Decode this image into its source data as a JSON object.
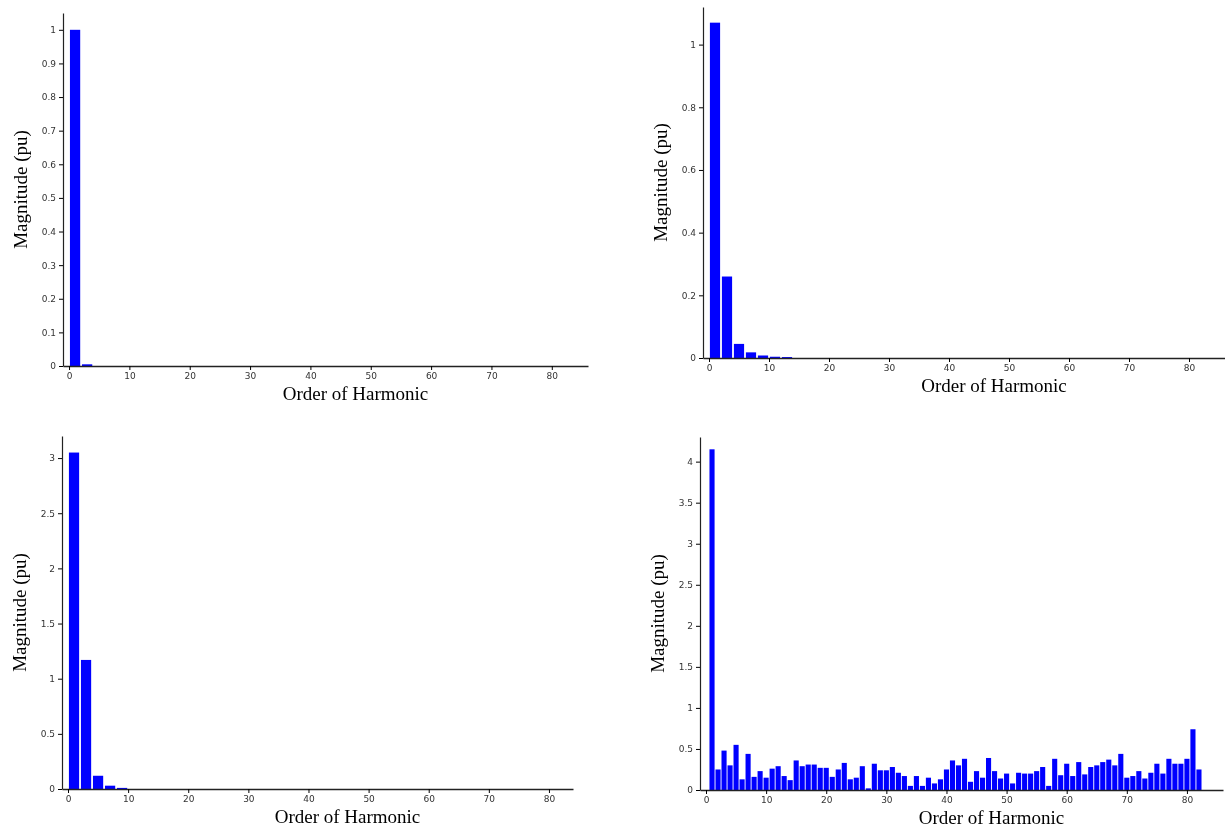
{
  "chart_data": [
    {
      "type": "bar",
      "xlabel": "Order of Harmonic",
      "ylabel": "Magnitude (pu)",
      "x": [
        1,
        3
      ],
      "values": [
        1.0,
        0.005
      ],
      "color": "#0000ff",
      "xlim": [
        -1,
        86
      ],
      "xticks": [
        0,
        10,
        20,
        30,
        40,
        50,
        60,
        70,
        80
      ],
      "ylim": [
        0,
        1.05
      ],
      "yticks": [
        0,
        0.1,
        0.2,
        0.3,
        0.4,
        0.5,
        0.6,
        0.7,
        0.8,
        0.9,
        1
      ],
      "grid": false,
      "legend": false
    },
    {
      "type": "bar",
      "xlabel": "Order of Harmonic",
      "ylabel": "Magnitude (pu)",
      "x": [
        1,
        3,
        5,
        7,
        9,
        11,
        13
      ],
      "values": [
        1.07,
        0.26,
        0.045,
        0.018,
        0.008,
        0.004,
        0.003
      ],
      "color": "#0000ff",
      "xlim": [
        -1,
        86
      ],
      "xticks": [
        0,
        10,
        20,
        30,
        40,
        50,
        60,
        70,
        80
      ],
      "ylim": [
        0,
        1.12
      ],
      "yticks": [
        0,
        0.2,
        0.4,
        0.6,
        0.8,
        1
      ],
      "grid": false,
      "legend": false
    },
    {
      "type": "bar",
      "xlabel": "Order of Harmonic",
      "ylabel": "Magnitude (pu)",
      "x": [
        1,
        3,
        5,
        7,
        9
      ],
      "values": [
        3.05,
        1.17,
        0.12,
        0.03,
        0.01
      ],
      "color": "#0000ff",
      "xlim": [
        -1,
        84
      ],
      "xticks": [
        0,
        10,
        20,
        30,
        40,
        50,
        60,
        70,
        80
      ],
      "ylim": [
        0,
        3.2
      ],
      "yticks": [
        0,
        0.5,
        1,
        1.5,
        2,
        2.5,
        3
      ],
      "grid": false,
      "legend": false
    },
    {
      "type": "bar",
      "xlabel": "Order of Harmonic",
      "ylabel": "Magnitude (pu)",
      "x": [
        1,
        2,
        3,
        4,
        5,
        6,
        7,
        8,
        9,
        10,
        11,
        12,
        13,
        14,
        15,
        16,
        17,
        18,
        19,
        20,
        21,
        22,
        23,
        24,
        25,
        26,
        27,
        28,
        29,
        30,
        31,
        32,
        33,
        34,
        35,
        36,
        37,
        38,
        39,
        40,
        41,
        42,
        43,
        44,
        45,
        46,
        47,
        48,
        49,
        50,
        51,
        52,
        53,
        54,
        55,
        56,
        57,
        58,
        59,
        60,
        61,
        62,
        63,
        64,
        65,
        66,
        67,
        68,
        69,
        70,
        71,
        72,
        73,
        74,
        75,
        76,
        77,
        78,
        79,
        80,
        81,
        82
      ],
      "values": [
        4.15,
        0.25,
        0.48,
        0.3,
        0.55,
        0.13,
        0.44,
        0.16,
        0.23,
        0.15,
        0.26,
        0.29,
        0.17,
        0.12,
        0.36,
        0.29,
        0.31,
        0.31,
        0.27,
        0.27,
        0.16,
        0.25,
        0.33,
        0.13,
        0.15,
        0.29,
        0.02,
        0.32,
        0.24,
        0.24,
        0.28,
        0.21,
        0.17,
        0.05,
        0.17,
        0.05,
        0.15,
        0.08,
        0.13,
        0.25,
        0.36,
        0.3,
        0.38,
        0.1,
        0.23,
        0.15,
        0.39,
        0.23,
        0.14,
        0.2,
        0.08,
        0.21,
        0.2,
        0.2,
        0.23,
        0.28,
        0.05,
        0.38,
        0.18,
        0.32,
        0.17,
        0.34,
        0.19,
        0.28,
        0.3,
        0.34,
        0.37,
        0.3,
        0.44,
        0.15,
        0.17,
        0.23,
        0.14,
        0.21,
        0.32,
        0.2,
        0.38,
        0.32,
        0.32,
        0.38,
        0.74,
        0.25
      ],
      "color": "#0000ff",
      "xlim": [
        -1,
        86
      ],
      "xticks": [
        0,
        10,
        20,
        30,
        40,
        50,
        60,
        70,
        80
      ],
      "ylim": [
        0,
        4.3
      ],
      "yticks": [
        0,
        0.5,
        1,
        1.5,
        2,
        2.5,
        3,
        3.5,
        4
      ],
      "grid": false,
      "legend": false
    }
  ]
}
